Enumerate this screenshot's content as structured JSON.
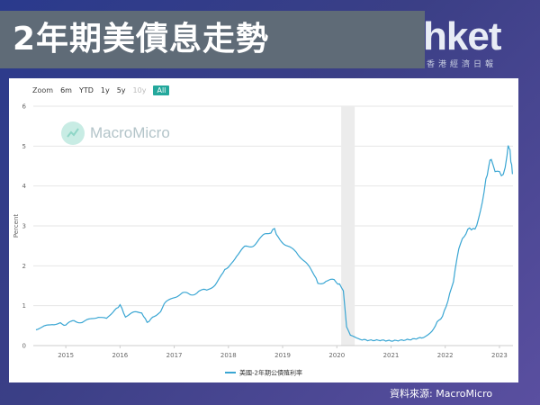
{
  "header": {
    "title": "2年期美債息走勢",
    "brand_name": "hket",
    "brand_sub": "香港經濟日報"
  },
  "source": "資料來源: MacroMicro",
  "toolbar": {
    "zoom_label": "Zoom",
    "buttons": [
      {
        "label": "6m",
        "state": "normal"
      },
      {
        "label": "YTD",
        "state": "normal"
      },
      {
        "label": "1y",
        "state": "normal"
      },
      {
        "label": "5y",
        "state": "normal"
      },
      {
        "label": "10y",
        "state": "disabled"
      },
      {
        "label": "All",
        "state": "active"
      }
    ]
  },
  "watermark": "MacroMicro",
  "colors": {
    "line": "#3aa6d3",
    "shade": "#ececec",
    "active_button": "#24a89c"
  },
  "chart_data": {
    "type": "line",
    "ylabel": "Percent",
    "ylim": [
      0,
      6
    ],
    "yticks": [
      0,
      1,
      2,
      3,
      4,
      5,
      6
    ],
    "xlim": [
      2014.4,
      2023.25
    ],
    "xticks": [
      "2015",
      "2016",
      "2017",
      "2018",
      "2019",
      "2020",
      "2021",
      "2022",
      "2023"
    ],
    "grid": true,
    "legend": {
      "position": "bottom-center"
    },
    "shaded_range": [
      2020.08,
      2020.33
    ],
    "series": [
      {
        "name": "美國-2年期公債殖利率",
        "points": [
          [
            2014.45,
            0.4
          ],
          [
            2014.6,
            0.48
          ],
          [
            2014.75,
            0.55
          ],
          [
            2014.9,
            0.55
          ],
          [
            2015.0,
            0.5
          ],
          [
            2015.15,
            0.62
          ],
          [
            2015.3,
            0.6
          ],
          [
            2015.45,
            0.65
          ],
          [
            2015.6,
            0.72
          ],
          [
            2015.75,
            0.68
          ],
          [
            2015.9,
            0.9
          ],
          [
            2016.0,
            1.05
          ],
          [
            2016.1,
            0.75
          ],
          [
            2016.25,
            0.8
          ],
          [
            2016.4,
            0.85
          ],
          [
            2016.5,
            0.6
          ],
          [
            2016.6,
            0.72
          ],
          [
            2016.75,
            0.85
          ],
          [
            2016.85,
            1.1
          ],
          [
            2017.0,
            1.22
          ],
          [
            2017.15,
            1.3
          ],
          [
            2017.3,
            1.28
          ],
          [
            2017.45,
            1.38
          ],
          [
            2017.6,
            1.35
          ],
          [
            2017.75,
            1.55
          ],
          [
            2017.9,
            1.8
          ],
          [
            2018.0,
            1.95
          ],
          [
            2018.15,
            2.25
          ],
          [
            2018.3,
            2.45
          ],
          [
            2018.45,
            2.55
          ],
          [
            2018.6,
            2.65
          ],
          [
            2018.75,
            2.85
          ],
          [
            2018.85,
            2.95
          ],
          [
            2018.95,
            2.65
          ],
          [
            2019.1,
            2.5
          ],
          [
            2019.25,
            2.35
          ],
          [
            2019.4,
            2.1
          ],
          [
            2019.55,
            1.85
          ],
          [
            2019.65,
            1.55
          ],
          [
            2019.8,
            1.65
          ],
          [
            2019.95,
            1.6
          ],
          [
            2020.05,
            1.5
          ],
          [
            2020.12,
            1.35
          ],
          [
            2020.18,
            0.45
          ],
          [
            2020.25,
            0.25
          ],
          [
            2020.4,
            0.18
          ],
          [
            2020.6,
            0.15
          ],
          [
            2020.8,
            0.15
          ],
          [
            2021.0,
            0.13
          ],
          [
            2021.2,
            0.14
          ],
          [
            2021.4,
            0.16
          ],
          [
            2021.6,
            0.2
          ],
          [
            2021.75,
            0.35
          ],
          [
            2021.85,
            0.6
          ],
          [
            2021.95,
            0.75
          ],
          [
            2022.05,
            1.15
          ],
          [
            2022.15,
            1.65
          ],
          [
            2022.25,
            2.5
          ],
          [
            2022.35,
            2.8
          ],
          [
            2022.45,
            3.0
          ],
          [
            2022.55,
            2.95
          ],
          [
            2022.65,
            3.4
          ],
          [
            2022.75,
            4.2
          ],
          [
            2022.8,
            4.45
          ],
          [
            2022.85,
            4.7
          ],
          [
            2022.92,
            4.4
          ],
          [
            2023.0,
            4.3
          ],
          [
            2023.07,
            4.25
          ],
          [
            2023.14,
            4.8
          ],
          [
            2023.18,
            5.05
          ],
          [
            2023.21,
            4.7
          ],
          [
            2023.24,
            4.3
          ]
        ]
      }
    ]
  }
}
